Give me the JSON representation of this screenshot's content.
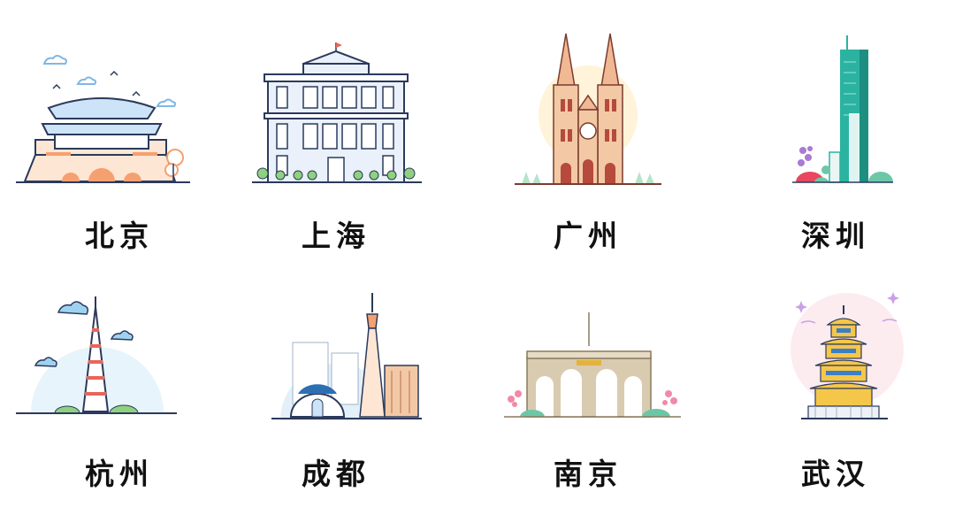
{
  "cities": [
    {
      "name": "北京",
      "icon": "beijing-tiananmen-icon"
    },
    {
      "name": "上海",
      "icon": "shanghai-colonial-building-icon"
    },
    {
      "name": "广州",
      "icon": "guangzhou-cathedral-icon"
    },
    {
      "name": "深圳",
      "icon": "shenzhen-skyscraper-icon"
    },
    {
      "name": "杭州",
      "icon": "hangzhou-pagoda-icon"
    },
    {
      "name": "成都",
      "icon": "chengdu-tv-tower-icon"
    },
    {
      "name": "南京",
      "icon": "nanjing-gate-icon"
    },
    {
      "name": "武汉",
      "icon": "wuhan-yellow-crane-tower-icon"
    }
  ],
  "colors": {
    "ink": "#2b3a5c",
    "label": "#111111",
    "accent_orange": "#f5a071",
    "accent_teal": "#2ab3a0"
  }
}
